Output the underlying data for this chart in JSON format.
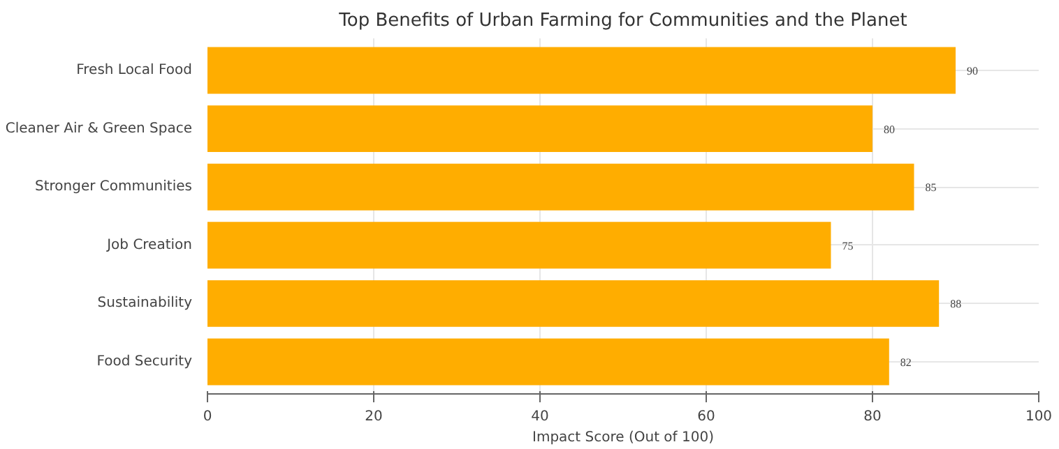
{
  "chart_data": {
    "type": "bar",
    "orientation": "horizontal",
    "title": "Top Benefits of Urban Farming for Communities and the Planet",
    "xlabel": "Impact Score (Out of 100)",
    "categories": [
      "Fresh Local Food",
      "Cleaner Air & Green Space",
      "Stronger Communities",
      "Job Creation",
      "Sustainability",
      "Food Security"
    ],
    "values": [
      90,
      80,
      85,
      75,
      88,
      82
    ],
    "color": "#ffad00",
    "xlim": [
      0,
      100
    ],
    "xticks": [
      0,
      20,
      40,
      60,
      80,
      100
    ],
    "grid": true,
    "data_labels": true
  }
}
